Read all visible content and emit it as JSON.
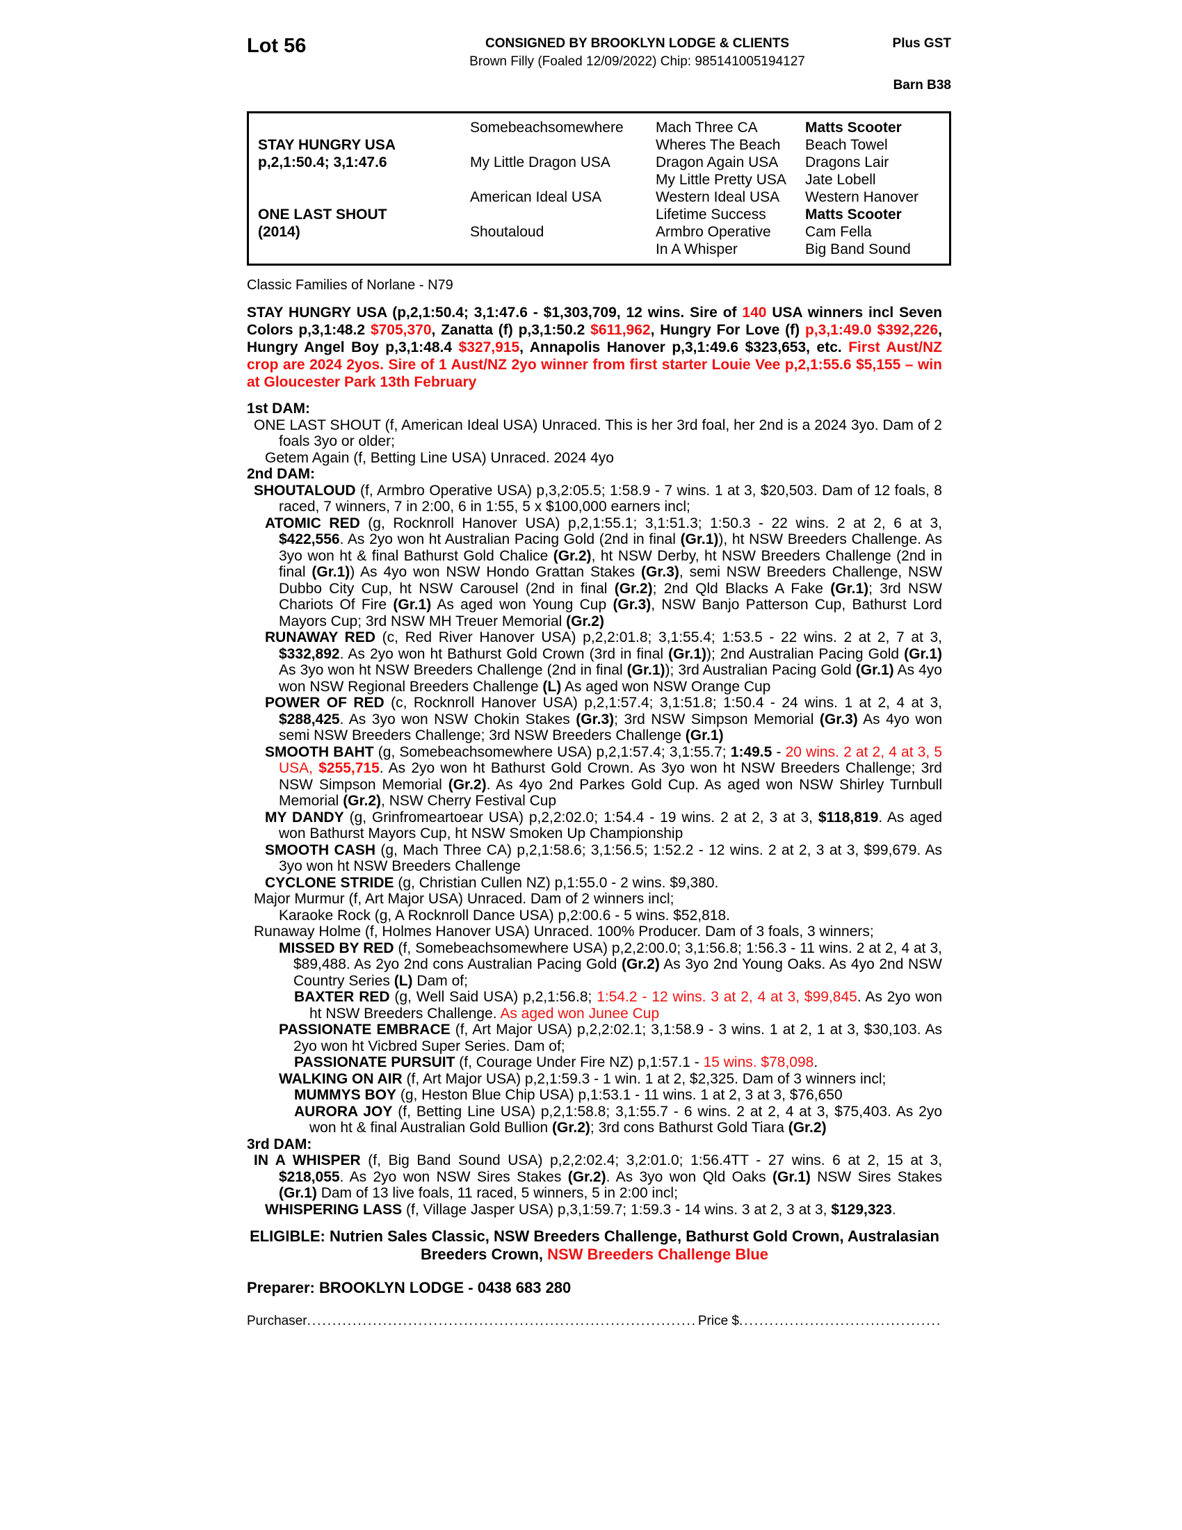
{
  "colors": {
    "accent_red": "#ee1111",
    "text": "#000000"
  },
  "header": {
    "lot": "Lot 56",
    "consignor": "CONSIGNED BY BROOKLYN LODGE & CLIENTS",
    "foaling": "Brown Filly (Foaled 12/09/2022) Chip: 985141005194127",
    "plus_gst": "Plus GST",
    "barn": "Barn B38"
  },
  "pedigree": {
    "rows": [
      [
        "",
        "Somebeachsomewhere",
        "Mach Three CA",
        "Matts Scooter"
      ],
      [
        "STAY HUNGRY USA",
        "",
        "Wheres The Beach",
        "Beach Towel"
      ],
      [
        "p,2,1:50.4; 3,1:47.6",
        "My Little Dragon USA",
        "Dragon Again USA",
        "Dragons Lair"
      ],
      [
        "",
        "",
        "My Little Pretty USA",
        "Jate Lobell"
      ],
      [
        "",
        "American Ideal USA",
        "Western Ideal USA",
        "Western Hanover"
      ],
      [
        "ONE LAST SHOUT",
        "",
        "Lifetime Success",
        "Matts Scooter"
      ],
      [
        "(2014)",
        "Shoutaloud",
        "Armbro Operative",
        "Cam Fella"
      ],
      [
        "",
        "",
        "In A Whisper",
        "Big Band Sound"
      ]
    ]
  },
  "family_note": "Classic Families of Norlane - N79",
  "sire_summary": [
    {
      "t": "STAY HUNGRY USA (p,2,1:50.4; 3,1:47.6 - $1,303,709, 12 wins. Sire of "
    },
    {
      "t": "140",
      "r": 1
    },
    {
      "t": " USA winners incl Seven Colors p,3,1:48.2 "
    },
    {
      "t": "$705,370",
      "r": 1
    },
    {
      "t": ", Zanatta (f) p,3,1:50.2 "
    },
    {
      "t": "$611,962",
      "r": 1
    },
    {
      "t": ", Hungry For Love (f) "
    },
    {
      "t": "p,3,1:49.0 $392,226",
      "r": 1
    },
    {
      "t": ", Hungry Angel Boy p,3,1:48.4 "
    },
    {
      "t": "$327,915",
      "r": 1
    },
    {
      "t": ", Annapolis Hanover p,3,1:49.6 $323,653, etc. "
    },
    {
      "t": "First Aust/NZ crop are 2024 2yos. Sire of 1 Aust/NZ 2yo winner from first starter Louie Vee p,2,1:55.6 $5,155 – win at Gloucester Park 13th February",
      "r": 1
    }
  ],
  "dams": {
    "first_dam_heading": "1st DAM:",
    "second_dam_heading": "2nd DAM:",
    "third_dam_heading": "3rd DAM:",
    "one_last_shout": [
      {
        "t": "ONE LAST SHOUT (f, American Ideal USA) Unraced. This is her 3rd foal, her 2nd is a 2024 3yo. Dam of 2 foals 3yo or older;"
      }
    ],
    "getem_again": [
      {
        "t": "Getem Again (f, Betting Line USA) Unraced. 2024 4yo"
      }
    ],
    "shoutaloud": [
      {
        "t": "SHOUTALOUD",
        "b": 1
      },
      {
        "t": " (f, Armbro Operative USA) p,3,2:05.5; 1:58.9 - 7 wins. 1 at 3, $20,503. Dam of 12 foals, 8 raced, 7 winners, 7 in 2:00, 6 in 1:55, 5 x $100,000 earners incl;"
      }
    ],
    "atomic_red": [
      {
        "t": "ATOMIC RED",
        "b": 1
      },
      {
        "t": " (g, Rocknroll Hanover USA) p,2,1:55.1; 3,1:51.3; 1:50.3 - 22 wins. 2 at 2, 6 at 3, "
      },
      {
        "t": "$422,556",
        "b": 1
      },
      {
        "t": ". As 2yo won ht Australian Pacing Gold (2nd in final "
      },
      {
        "t": "(Gr.1)",
        "b": 1
      },
      {
        "t": "), ht NSW Breeders Challenge. As 3yo won ht & final Bathurst Gold Chalice "
      },
      {
        "t": "(Gr.2)",
        "b": 1
      },
      {
        "t": ", ht NSW Derby, ht NSW Breeders Challenge (2nd in final "
      },
      {
        "t": "(Gr.1)",
        "b": 1
      },
      {
        "t": ") As 4yo won NSW Hondo Grattan Stakes "
      },
      {
        "t": "(Gr.3)",
        "b": 1
      },
      {
        "t": ", semi NSW Breeders Challenge, NSW Dubbo City Cup, ht NSW Carousel (2nd in final "
      },
      {
        "t": "(Gr.2)",
        "b": 1
      },
      {
        "t": "; 2nd Qld Blacks A Fake "
      },
      {
        "t": "(Gr.1)",
        "b": 1
      },
      {
        "t": "; 3rd NSW Chariots Of Fire "
      },
      {
        "t": "(Gr.1)",
        "b": 1
      },
      {
        "t": " As aged won Young Cup "
      },
      {
        "t": "(Gr.3)",
        "b": 1
      },
      {
        "t": ", NSW Banjo Patterson Cup, Bathurst Lord Mayors Cup; 3rd NSW MH Treuer Memorial "
      },
      {
        "t": "(Gr.2)",
        "b": 1
      }
    ],
    "runaway_red": [
      {
        "t": "RUNAWAY RED",
        "b": 1
      },
      {
        "t": " (c, Red River Hanover USA) p,2,2:01.8; 3,1:55.4; 1:53.5 - 22 wins. 2 at 2, 7 at 3, "
      },
      {
        "t": "$332,892",
        "b": 1
      },
      {
        "t": ". As 2yo won ht Bathurst Gold Crown (3rd in final "
      },
      {
        "t": "(Gr.1)",
        "b": 1
      },
      {
        "t": "); 2nd Australian Pacing Gold "
      },
      {
        "t": "(Gr.1)",
        "b": 1
      },
      {
        "t": " As 3yo won ht NSW Breeders Challenge (2nd in final "
      },
      {
        "t": "(Gr.1)",
        "b": 1
      },
      {
        "t": "); 3rd Australian Pacing Gold "
      },
      {
        "t": "(Gr.1)",
        "b": 1
      },
      {
        "t": " As 4yo won NSW Regional Breeders Challenge "
      },
      {
        "t": "(L)",
        "b": 1
      },
      {
        "t": " As aged won NSW Orange Cup"
      }
    ],
    "power_of_red": [
      {
        "t": "POWER OF RED",
        "b": 1
      },
      {
        "t": " (c, Rocknroll Hanover USA) p,2,1:57.4; 3,1:51.8; 1:50.4 - 24 wins. 1 at 2, 4 at 3, "
      },
      {
        "t": "$288,425",
        "b": 1
      },
      {
        "t": ". As 3yo won NSW Chokin Stakes "
      },
      {
        "t": "(Gr.3)",
        "b": 1
      },
      {
        "t": "; 3rd NSW Simpson Memorial "
      },
      {
        "t": "(Gr.3)",
        "b": 1
      },
      {
        "t": " As 4yo won semi NSW Breeders Challenge; 3rd NSW Breeders Challenge "
      },
      {
        "t": "(Gr.1)",
        "b": 1
      }
    ],
    "smooth_baht": [
      {
        "t": "SMOOTH BAHT",
        "b": 1
      },
      {
        "t": " (g, Somebeachsomewhere USA) p,2,1:57.4; 3,1:55.7; "
      },
      {
        "t": "1:49.5",
        "b": 1
      },
      {
        "t": " - "
      },
      {
        "t": "20 wins. 2 at 2, 4 at 3, 5 USA, ",
        "r": 1
      },
      {
        "t": "$255,715",
        "r": 1,
        "b": 1
      },
      {
        "t": ". As 2yo won ht Bathurst Gold Crown. As 3yo won ht NSW Breeders Challenge; 3rd NSW Simpson Memorial "
      },
      {
        "t": "(Gr.2)",
        "b": 1
      },
      {
        "t": ". As 4yo 2nd Parkes Gold Cup. As aged won NSW Shirley Turnbull Memorial "
      },
      {
        "t": "(Gr.2)",
        "b": 1
      },
      {
        "t": ", NSW Cherry Festival Cup"
      }
    ],
    "my_dandy": [
      {
        "t": "MY DANDY",
        "b": 1
      },
      {
        "t": " (g, Grinfromeartoear USA) p,2,2:02.0; 1:54.4 - 19 wins. 2 at 2, 3 at 3, "
      },
      {
        "t": "$118,819",
        "b": 1
      },
      {
        "t": ". As aged won Bathurst Mayors Cup, ht NSW Smoken Up Championship"
      }
    ],
    "smooth_cash": [
      {
        "t": "SMOOTH CASH",
        "b": 1
      },
      {
        "t": " (g, Mach Three CA) p,2,1:58.6; 3,1:56.5; 1:52.2 - 12 wins. 2 at 2, 3 at 3, $99,679. As 3yo won ht NSW Breeders Challenge"
      }
    ],
    "cyclone_stride": [
      {
        "t": "CYCLONE STRIDE",
        "b": 1
      },
      {
        "t": " (g, Christian Cullen NZ) p,1:55.0 - 2 wins. $9,380."
      }
    ],
    "major_murmur": [
      {
        "t": "Major Murmur (f, Art Major USA) Unraced. Dam of 2 winners incl;"
      }
    ],
    "karaoke_rock": [
      {
        "t": "Karaoke Rock (g, A Rocknroll Dance USA) p,2:00.6 - 5 wins. $52,818."
      }
    ],
    "runaway_holme": [
      {
        "t": "Runaway Holme (f, Holmes Hanover USA) Unraced. 100% Producer. Dam of 3 foals, 3 winners;"
      }
    ],
    "missed_by_red": [
      {
        "t": "MISSED BY RED",
        "b": 1
      },
      {
        "t": " (f, Somebeachsomewhere USA) p,2,2:00.0; 3,1:56.8; 1:56.3 - 11 wins. 2 at 2, 4 at 3, $89,488. As 2yo 2nd cons Australian Pacing Gold "
      },
      {
        "t": "(Gr.2)",
        "b": 1
      },
      {
        "t": " As 3yo 2nd Young Oaks. As 4yo 2nd NSW Country Series "
      },
      {
        "t": "(L)",
        "b": 1
      },
      {
        "t": " Dam of;"
      }
    ],
    "baxter_red": [
      {
        "t": "BAXTER RED",
        "b": 1
      },
      {
        "t": " (g, Well Said USA) p,2,1:56.8; "
      },
      {
        "t": "1:54.2 - 12 wins. 3 at 2, 4 at 3, $99,845",
        "r": 1
      },
      {
        "t": ". As 2yo won ht NSW Breeders Challenge. "
      },
      {
        "t": "As aged won Junee Cup",
        "r": 1
      }
    ],
    "passionate_embrace": [
      {
        "t": "PASSIONATE EMBRACE",
        "b": 1
      },
      {
        "t": " (f, Art Major USA) p,2,2:02.1; 3,1:58.9 - 3 wins. 1 at 2, 1 at 3, $30,103. As 2yo won ht Vicbred Super Series. Dam of;"
      }
    ],
    "passionate_pursuit": [
      {
        "t": "PASSIONATE PURSUIT",
        "b": 1
      },
      {
        "t": " (f, Courage Under Fire NZ) p,1:57.1 - "
      },
      {
        "t": "15 wins. $78,098",
        "r": 1
      },
      {
        "t": "."
      }
    ],
    "walking_on_air": [
      {
        "t": "WALKING ON AIR",
        "b": 1
      },
      {
        "t": " (f, Art Major USA) p,2,1:59.3 - 1 win. 1 at 2, $2,325. Dam of 3 winners incl;"
      }
    ],
    "mummys_boy": [
      {
        "t": "MUMMYS BOY",
        "b": 1
      },
      {
        "t": " (g, Heston Blue Chip USA) p,1:53.1 - 11 wins. 1 at 2, 3 at 3, $76,650"
      }
    ],
    "aurora_joy": [
      {
        "t": "AURORA JOY",
        "b": 1
      },
      {
        "t": " (f, Betting Line USA) p,2,1:58.8; 3,1:55.7 - 6 wins. 2 at 2, 4 at 3, $75,403. As 2yo won ht & final Australian Gold Bullion "
      },
      {
        "t": "(Gr.2)",
        "b": 1
      },
      {
        "t": "; 3rd cons Bathurst Gold Tiara "
      },
      {
        "t": "(Gr.2)",
        "b": 1
      }
    ],
    "in_a_whisper": [
      {
        "t": "IN A WHISPER",
        "b": 1
      },
      {
        "t": " (f, Big Band Sound USA) p,2,2:02.4; 3,2:01.0; 1:56.4TT - 27 wins. 6 at 2, 15 at 3, "
      },
      {
        "t": "$218,055",
        "b": 1
      },
      {
        "t": ". As 2yo won NSW Sires Stakes "
      },
      {
        "t": "(Gr.2)",
        "b": 1
      },
      {
        "t": ". As 3yo won Qld Oaks "
      },
      {
        "t": "(Gr.1)",
        "b": 1
      },
      {
        "t": " NSW Sires Stakes "
      },
      {
        "t": "(Gr.1)",
        "b": 1
      },
      {
        "t": " Dam of 13 live foals, 11 raced, 5 winners, 5 in 2:00 incl;"
      }
    ],
    "whispering_lass": [
      {
        "t": "WHISPERING LASS",
        "b": 1
      },
      {
        "t": " (f, Village Jasper USA) p,3,1:59.7; 1:59.3 - 14 wins. 3 at 2, 3 at 3, "
      },
      {
        "t": "$129,323",
        "b": 1
      },
      {
        "t": "."
      }
    ]
  },
  "eligible": [
    {
      "t": "ELIGIBLE: Nutrien Sales Classic, NSW Breeders Challenge, Bathurst Gold Crown, Australasian Breeders Crown, "
    },
    {
      "t": "NSW Breeders Challenge Blue",
      "r": 1
    }
  ],
  "preparer": "Preparer: BROOKLYN LODGE - 0438 683 280",
  "purchase": {
    "purchaser_label": "Purchaser",
    "leader1": "........................................................................................................................",
    "price_label": "Price $",
    "leader2": "............................................................"
  }
}
